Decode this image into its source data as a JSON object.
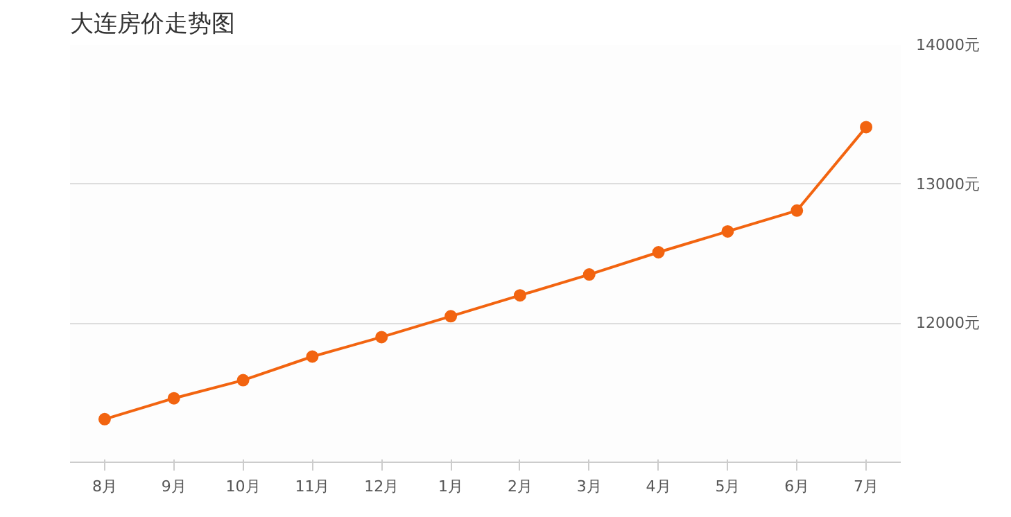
{
  "chart_data": {
    "type": "line",
    "title": "大连房价走势图",
    "categories": [
      "8月",
      "9月",
      "10月",
      "11月",
      "12月",
      "1月",
      "2月",
      "3月",
      "4月",
      "5月",
      "6月",
      "7月"
    ],
    "series": [
      {
        "color": "#f26410",
        "values": [
          11310,
          11460,
          11590,
          11760,
          11900,
          12050,
          12200,
          12350,
          12510,
          12660,
          12810,
          13410
        ]
      }
    ],
    "ylim": [
      11000,
      14000
    ],
    "yticks": [
      {
        "value": 12000,
        "label": "12000元"
      },
      {
        "value": 13000,
        "label": "13000元"
      },
      {
        "value": 14000,
        "label": "14000元"
      }
    ],
    "grid": "y",
    "marker": "circle",
    "line_style": "solid"
  }
}
